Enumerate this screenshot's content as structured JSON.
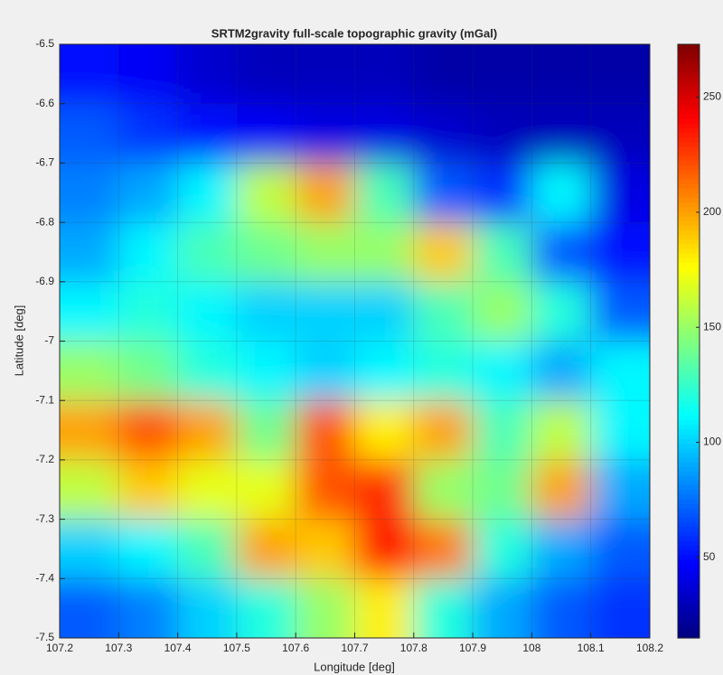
{
  "chart_data": {
    "type": "heatmap",
    "title": "SRTM2gravity full-scale topographic gravity (mGal)",
    "xlabel": "Longitude [deg]",
    "ylabel": "Latitude [deg]",
    "xlim": [
      107.2,
      108.2
    ],
    "ylim": [
      -7.5,
      -6.5
    ],
    "xticks": [
      107.2,
      107.3,
      107.4,
      107.5,
      107.6,
      107.7,
      107.8,
      107.9,
      108,
      108.1,
      108.2
    ],
    "yticks": [
      -6.5,
      -6.6,
      -6.7,
      -6.8,
      -6.9,
      -7,
      -7.1,
      -7.2,
      -7.3,
      -7.4,
      -7.5
    ],
    "grid": true,
    "colormap": "jet",
    "clim": [
      15,
      273
    ],
    "cticks": [
      50,
      100,
      150,
      200,
      250
    ],
    "z": [
      [
        50,
        45,
        35,
        30,
        30,
        30,
        25,
        25,
        25,
        25
      ],
      [
        70,
        60,
        50,
        45,
        40,
        40,
        35,
        30,
        30,
        30
      ],
      [
        80,
        90,
        110,
        160,
        200,
        130,
        70,
        60,
        110,
        40
      ],
      [
        90,
        110,
        130,
        140,
        150,
        150,
        190,
        130,
        70,
        50
      ],
      [
        110,
        120,
        110,
        100,
        100,
        100,
        130,
        150,
        120,
        70
      ],
      [
        150,
        140,
        120,
        110,
        100,
        110,
        120,
        110,
        90,
        110
      ],
      [
        200,
        220,
        200,
        140,
        220,
        180,
        200,
        130,
        160,
        110
      ],
      [
        160,
        190,
        170,
        170,
        220,
        230,
        150,
        140,
        200,
        90
      ],
      [
        100,
        110,
        130,
        200,
        190,
        240,
        210,
        120,
        90,
        70
      ],
      [
        70,
        80,
        100,
        120,
        150,
        180,
        120,
        90,
        70,
        60
      ]
    ]
  }
}
